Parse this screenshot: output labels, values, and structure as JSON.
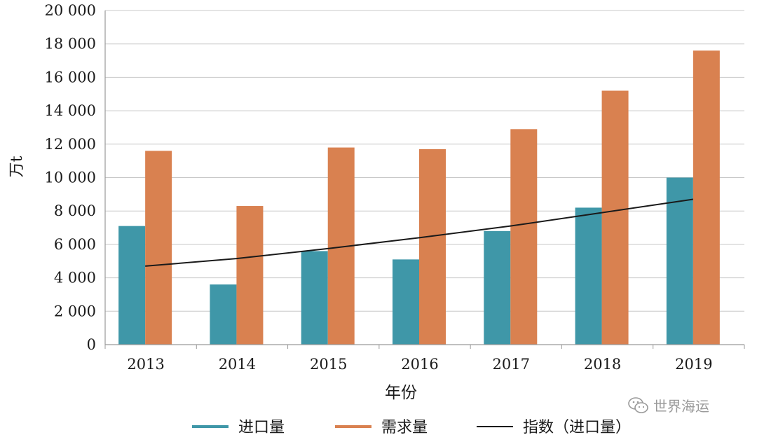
{
  "chart_data": {
    "type": "bar",
    "xlabel": "年份",
    "ylabel": "万t",
    "ylim": [
      0,
      20000
    ],
    "yticks": [
      0,
      2000,
      4000,
      6000,
      8000,
      10000,
      12000,
      14000,
      16000,
      18000,
      20000
    ],
    "ytick_labels": [
      "0",
      "2 000",
      "4 000",
      "6 000",
      "8 000",
      "10 000",
      "12 000",
      "14 000",
      "16 000",
      "18 000",
      "20 000"
    ],
    "categories": [
      "2013",
      "2014",
      "2015",
      "2016",
      "2017",
      "2018",
      "2019"
    ],
    "series": [
      {
        "name": "进口量",
        "color": "#3f97a8",
        "values": [
          7100,
          3600,
          5600,
          5100,
          6800,
          8200,
          10000
        ]
      },
      {
        "name": "需求量",
        "color": "#d98150",
        "values": [
          11600,
          8300,
          11800,
          11700,
          12900,
          15200,
          17600
        ]
      }
    ],
    "trendline": {
      "name": "指数（进口量）",
      "color": "#1a1a1a",
      "values": [
        4700,
        5150,
        5750,
        6400,
        7100,
        7900,
        8700
      ]
    },
    "grid": true,
    "legend_position": "bottom"
  },
  "watermark": {
    "text": "世界海运",
    "icon": "wechat-icon"
  }
}
